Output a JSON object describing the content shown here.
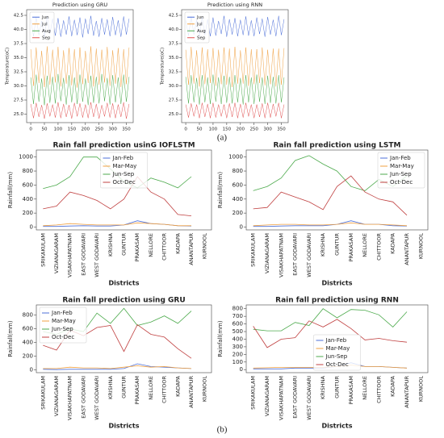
{
  "chart_data": [
    {
      "type": "line",
      "title": "Prediction using GRU",
      "ylabel": "Temperature(oC)",
      "x": [
        0,
        10,
        20,
        30,
        40,
        50,
        60,
        70,
        80,
        90,
        100,
        110,
        120,
        130,
        140,
        150,
        160,
        170,
        180,
        190,
        200,
        210,
        220,
        230,
        240,
        250,
        260,
        270,
        280,
        290,
        300,
        310,
        320,
        330,
        340,
        350,
        360
      ],
      "xlim": [
        -15,
        375
      ],
      "xticks": [
        0,
        50,
        100,
        150,
        200,
        250,
        300,
        350
      ],
      "ylim": [
        23.5,
        43.5
      ],
      "yticks": [
        {
          "value": 25,
          "label": "25.0"
        },
        27.5,
        {
          "value": 30,
          "label": "30.0"
        },
        32.5,
        {
          "value": 35,
          "label": "35.0"
        },
        37.5,
        {
          "value": 40,
          "label": "40.0"
        },
        42.5
      ],
      "legend": "upper left",
      "series": [
        {
          "name": "Jun",
          "color": "#4c6fd8",
          "values": [
            41.8,
            38.8,
            42.2,
            39.0,
            41.5,
            38.6,
            42.4,
            39.2,
            41.9,
            38.9,
            42.0,
            38.7,
            41.6,
            39.1,
            42.3,
            38.8,
            41.7,
            39.0,
            42.1,
            38.6,
            41.9,
            39.2,
            42.4,
            38.9,
            41.5,
            38.7,
            42.0,
            39.1,
            41.8,
            38.8,
            42.2,
            39.0,
            41.6,
            38.7,
            42.3,
            39.1,
            41.9
          ]
        },
        {
          "name": "Jul",
          "color": "#f0a040",
          "values": [
            36.5,
            30.0,
            36.8,
            30.5,
            36.2,
            29.8,
            37.0,
            30.2,
            36.4,
            30.6,
            36.9,
            29.9,
            36.3,
            30.4,
            36.7,
            30.1,
            36.5,
            29.7,
            36.8,
            30.3,
            36.2,
            30.5,
            37.0,
            29.9,
            36.6,
            30.2,
            36.4,
            30.6,
            36.9,
            30.0,
            36.3,
            30.4,
            36.7,
            29.8,
            36.5,
            30.3,
            36.8
          ]
        },
        {
          "name": "Aug",
          "color": "#4caa4c",
          "values": [
            31.5,
            26.8,
            32.0,
            27.2,
            31.3,
            26.6,
            31.8,
            27.0,
            31.6,
            26.9,
            32.1,
            27.3,
            31.4,
            26.7,
            31.9,
            27.1,
            31.5,
            26.8,
            32.0,
            27.2,
            31.3,
            26.6,
            31.8,
            27.0,
            31.6,
            26.9,
            32.1,
            27.3,
            31.4,
            26.7,
            31.9,
            27.1,
            31.5,
            26.8,
            32.0,
            27.2,
            31.6
          ]
        },
        {
          "name": "Sep",
          "color": "#e05050",
          "values": [
            26.8,
            24.3,
            27.0,
            24.5,
            26.6,
            24.2,
            26.9,
            24.6,
            26.7,
            24.4,
            27.1,
            24.3,
            26.8,
            24.5,
            26.6,
            24.2,
            27.0,
            24.6,
            26.9,
            24.4,
            26.7,
            24.3,
            27.1,
            24.5,
            26.8,
            24.2,
            26.6,
            24.6,
            27.0,
            24.4,
            26.9,
            24.3,
            26.7,
            24.5,
            27.1,
            24.2,
            26.8
          ]
        }
      ]
    },
    {
      "type": "line",
      "title": "Prediction using RNN",
      "ylabel": "Temperature(oC)",
      "x": [
        0,
        10,
        20,
        30,
        40,
        50,
        60,
        70,
        80,
        90,
        100,
        110,
        120,
        130,
        140,
        150,
        160,
        170,
        180,
        190,
        200,
        210,
        220,
        230,
        240,
        250,
        260,
        270,
        280,
        290,
        300,
        310,
        320,
        330,
        340,
        350,
        360
      ],
      "xlim": [
        -15,
        375
      ],
      "xticks": [
        0,
        50,
        100,
        150,
        200,
        250,
        300,
        350
      ],
      "ylim": [
        23.5,
        43.5
      ],
      "yticks": [
        {
          "value": 25,
          "label": "25.0"
        },
        27.5,
        {
          "value": 30,
          "label": "30.0"
        },
        32.5,
        {
          "value": 35,
          "label": "35.0"
        },
        37.5,
        {
          "value": 40,
          "label": "40.0"
        },
        42.5
      ],
      "legend": "upper left",
      "series": [
        {
          "name": "Jun",
          "color": "#4c6fd8",
          "values": [
            41.6,
            38.9,
            42.3,
            39.1,
            41.7,
            38.7,
            42.2,
            39.0,
            41.8,
            38.8,
            42.1,
            38.9,
            41.5,
            39.2,
            42.4,
            38.7,
            41.8,
            39.1,
            42.0,
            38.8,
            41.7,
            39.0,
            42.3,
            38.9,
            41.6,
            38.8,
            42.1,
            39.2,
            41.9,
            38.7,
            42.2,
            39.1,
            41.7,
            38.8,
            42.4,
            39.0,
            41.8
          ]
        },
        {
          "name": "Jul",
          "color": "#f0a040",
          "values": [
            36.4,
            30.2,
            36.9,
            30.4,
            36.3,
            29.9,
            36.8,
            30.3,
            36.5,
            30.5,
            36.7,
            30.0,
            36.4,
            30.3,
            36.8,
            30.2,
            36.6,
            29.8,
            36.9,
            30.4,
            36.3,
            30.4,
            36.8,
            30.0,
            36.5,
            30.3,
            36.5,
            30.5,
            36.8,
            30.1,
            36.4,
            30.3,
            36.6,
            29.9,
            36.6,
            30.2,
            36.7
          ]
        },
        {
          "name": "Aug",
          "color": "#4caa4c",
          "values": [
            31.6,
            26.9,
            31.9,
            27.1,
            31.4,
            26.7,
            31.9,
            27.1,
            31.5,
            26.8,
            32.0,
            27.2,
            31.5,
            26.8,
            31.8,
            27.0,
            31.6,
            26.9,
            31.9,
            27.1,
            31.4,
            26.7,
            31.9,
            27.1,
            31.5,
            26.8,
            32.0,
            27.2,
            31.5,
            26.8,
            31.8,
            27.0,
            31.6,
            26.9,
            31.9,
            27.1,
            31.5
          ]
        },
        {
          "name": "Sep",
          "color": "#e05050",
          "values": [
            26.7,
            24.4,
            26.9,
            24.6,
            26.7,
            24.3,
            27.0,
            24.5,
            26.8,
            24.3,
            27.0,
            24.4,
            26.7,
            24.6,
            26.7,
            24.3,
            26.9,
            24.5,
            27.0,
            24.3,
            26.8,
            24.4,
            27.0,
            24.6,
            26.7,
            24.3,
            26.7,
            24.5,
            26.9,
            24.3,
            27.0,
            24.4,
            26.8,
            24.6,
            27.0,
            24.3,
            26.7
          ]
        }
      ]
    },
    {
      "type": "line",
      "title": "Rain fall prediction usinG IOFLSTM",
      "xlabel": "Districts",
      "ylabel": "Rainfall(mm)",
      "categories": [
        "SRIKAKULAM",
        "VIZIANAGARAM",
        "VISAKHAPATNAM",
        "EAST GODAVARI",
        "WEST GODAVARI",
        "KRISHNA",
        "GUNTUR",
        "PRAKASAM",
        "NELLORE",
        "CHITTOOR",
        "KADAPA",
        "ANANTAPUR",
        "KURNOOL"
      ],
      "ylim": [
        -40,
        1100
      ],
      "yticks": [
        0,
        200,
        400,
        600,
        800,
        1000
      ],
      "legend": "upper center",
      "series": [
        {
          "name": "Jan-Feb",
          "color": "#4c6fd8",
          "values": [
            10,
            10,
            15,
            20,
            15,
            15,
            30,
            90,
            50,
            40,
            20,
            15,
            null
          ]
        },
        {
          "name": "Mar-May",
          "color": "#f0a040",
          "values": [
            20,
            30,
            50,
            40,
            30,
            30,
            30,
            60,
            50,
            40,
            20,
            20,
            null
          ]
        },
        {
          "name": "Jun-Sep",
          "color": "#4caa4c",
          "values": [
            550,
            600,
            720,
            1000,
            1000,
            830,
            650,
            560,
            700,
            640,
            560,
            720,
            null
          ]
        },
        {
          "name": "Oct-Dec",
          "color": "#c04040",
          "values": [
            260,
            300,
            500,
            450,
            380,
            260,
            400,
            720,
            500,
            400,
            180,
            160,
            null
          ]
        }
      ]
    },
    {
      "type": "line",
      "title": "Rain fall prediction using LSTM",
      "xlabel": "Districts",
      "ylabel": "Rainfall(mm)",
      "categories": [
        "SRIKAKULAM",
        "VIZIANAGARAM",
        "VISAKHAPATNAM",
        "EAST GODAVARI",
        "WEST GODAVARI",
        "KRISHNA",
        "GUNTUR",
        "PRAKASAM",
        "NELLORE",
        "CHITTOOR",
        "KADAPA",
        "ANANTAPUR",
        "KURNOOL"
      ],
      "ylim": [
        -40,
        1100
      ],
      "yticks": [
        0,
        200,
        400,
        600,
        800,
        1000
      ],
      "legend": "upper right",
      "series": [
        {
          "name": "Jan-Feb",
          "color": "#4c6fd8",
          "values": [
            10,
            10,
            15,
            20,
            20,
            20,
            40,
            90,
            40,
            40,
            20,
            15,
            null
          ]
        },
        {
          "name": "Mar-May",
          "color": "#f0a040",
          "values": [
            20,
            30,
            40,
            40,
            30,
            30,
            40,
            60,
            40,
            40,
            30,
            20,
            null
          ]
        },
        {
          "name": "Jun-Sep",
          "color": "#4caa4c",
          "values": [
            520,
            580,
            700,
            950,
            1020,
            900,
            800,
            580,
            520,
            680,
            580,
            730,
            null
          ]
        },
        {
          "name": "Oct-Dec",
          "color": "#c04040",
          "values": [
            260,
            280,
            500,
            430,
            360,
            250,
            580,
            730,
            500,
            400,
            360,
            170,
            null
          ]
        }
      ]
    },
    {
      "type": "line",
      "title": "Rain fall prediction using GRU",
      "xlabel": "Districts",
      "ylabel": "Rainfall(mm)",
      "categories": [
        "SRIKAKULAM",
        "VIZIANAGARAM",
        "VISAKHAPATNAM",
        "EAST GODAVARI",
        "WEST GODAVARI",
        "KRISHNA",
        "GUNTUR",
        "PRAKASAM",
        "NELLORE",
        "CHITTOOR",
        "KADAPA",
        "ANANTAPUR",
        "KURNOOL"
      ],
      "ylim": [
        -40,
        950
      ],
      "yticks": [
        0,
        200,
        400,
        600,
        800
      ],
      "legend": "upper left",
      "series": [
        {
          "name": "Jan-Feb",
          "color": "#4c6fd8",
          "values": [
            10,
            5,
            10,
            10,
            10,
            10,
            20,
            90,
            50,
            40,
            30,
            20,
            null
          ]
        },
        {
          "name": "Mar-May",
          "color": "#f0a040",
          "values": [
            20,
            20,
            40,
            30,
            30,
            20,
            40,
            60,
            40,
            50,
            30,
            20,
            null
          ]
        },
        {
          "name": "Jun-Sep",
          "color": "#4caa4c",
          "values": [
            560,
            520,
            600,
            560,
            830,
            680,
            900,
            650,
            700,
            790,
            680,
            860,
            null
          ]
        },
        {
          "name": "Oct-Dec",
          "color": "#c04040",
          "values": [
            360,
            290,
            580,
            500,
            620,
            650,
            270,
            660,
            520,
            480,
            310,
            170,
            null
          ]
        }
      ]
    },
    {
      "type": "line",
      "title": "Rain fall prediction using RNN",
      "xlabel": "Districts",
      "ylabel": "Rainfall(mm)",
      "categories": [
        "SRIKAKULAM",
        "VIZIANAGARAM",
        "VISAKHAPATNAM",
        "EAST GODAVARI",
        "WEST GODAVARI",
        "KRISHNA",
        "GUNTUR",
        "PRAKASAM",
        "NELLORE",
        "CHITTOOR",
        "KADAPA",
        "ANANTAPUR",
        "KURNOOL"
      ],
      "ylim": [
        -40,
        850
      ],
      "yticks": [
        0,
        100,
        200,
        300,
        400,
        500,
        600,
        700,
        800
      ],
      "legend": "lower center",
      "series": [
        {
          "name": "Jan-Feb",
          "color": "#4c6fd8",
          "values": [
            10,
            10,
            10,
            20,
            20,
            20,
            40,
            90,
            40,
            40,
            30,
            20,
            null
          ]
        },
        {
          "name": "Mar-May",
          "color": "#f0a040",
          "values": [
            20,
            25,
            30,
            30,
            30,
            30,
            40,
            60,
            40,
            40,
            30,
            20,
            null
          ]
        },
        {
          "name": "Jun-Sep",
          "color": "#4caa4c",
          "values": [
            530,
            510,
            510,
            620,
            580,
            800,
            680,
            790,
            780,
            720,
            560,
            760,
            null
          ]
        },
        {
          "name": "Oct-Dec",
          "color": "#c04040",
          "values": [
            570,
            290,
            400,
            420,
            640,
            560,
            660,
            540,
            390,
            410,
            380,
            360,
            null
          ]
        }
      ]
    }
  ],
  "figure_labels": [
    "(a)",
    "(b)"
  ]
}
